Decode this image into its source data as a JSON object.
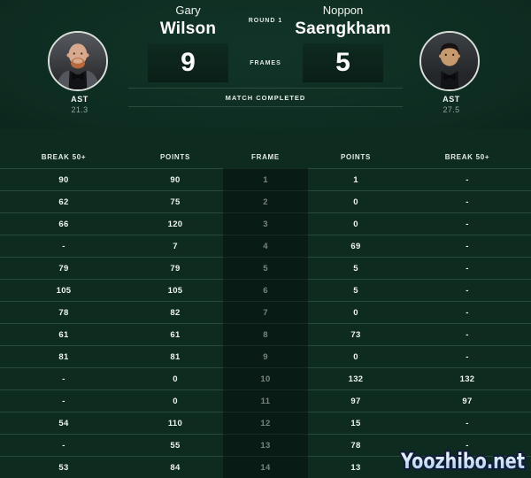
{
  "header": {
    "round_label": "ROUND 1",
    "frames_label": "FRAMES",
    "status_label": "MATCH COMPLETED",
    "player1": {
      "first_name": "Gary",
      "last_name": "Wilson",
      "score": "9",
      "stat_label": "AST",
      "stat_value": "21.3"
    },
    "player2": {
      "first_name": "Noppon",
      "last_name": "Saengkham",
      "score": "5",
      "stat_label": "AST",
      "stat_value": "27.5"
    }
  },
  "table": {
    "headers": [
      "BREAK 50+",
      "POINTS",
      "FRAME",
      "POINTS",
      "BREAK 50+"
    ],
    "rows": [
      [
        "90",
        "90",
        "1",
        "1",
        "-"
      ],
      [
        "62",
        "75",
        "2",
        "0",
        "-"
      ],
      [
        "66",
        "120",
        "3",
        "0",
        "-"
      ],
      [
        "-",
        "7",
        "4",
        "69",
        "-"
      ],
      [
        "79",
        "79",
        "5",
        "5",
        "-"
      ],
      [
        "105",
        "105",
        "6",
        "5",
        "-"
      ],
      [
        "78",
        "82",
        "7",
        "0",
        "-"
      ],
      [
        "61",
        "61",
        "8",
        "73",
        "-"
      ],
      [
        "81",
        "81",
        "9",
        "0",
        "-"
      ],
      [
        "-",
        "0",
        "10",
        "132",
        "132"
      ],
      [
        "-",
        "0",
        "11",
        "97",
        "97"
      ],
      [
        "54",
        "110",
        "12",
        "15",
        "-"
      ],
      [
        "-",
        "55",
        "13",
        "78",
        "-"
      ],
      [
        "53",
        "84",
        "14",
        "13",
        "-"
      ]
    ]
  },
  "watermark": {
    "text": "Yoozhibo.net"
  },
  "colors": {
    "table_background": "#0e2b20",
    "header_glow": "#123428",
    "header_edge": "#07170f",
    "score_box": "#0c241b",
    "separator": "#28493c",
    "frame_band": "rgba(2,14,9,0.5)",
    "text": "#f0f4f1",
    "muted_text": "#8ea79b",
    "watermark_fill": "#bcd9f2",
    "watermark_stroke": "#101b38"
  }
}
